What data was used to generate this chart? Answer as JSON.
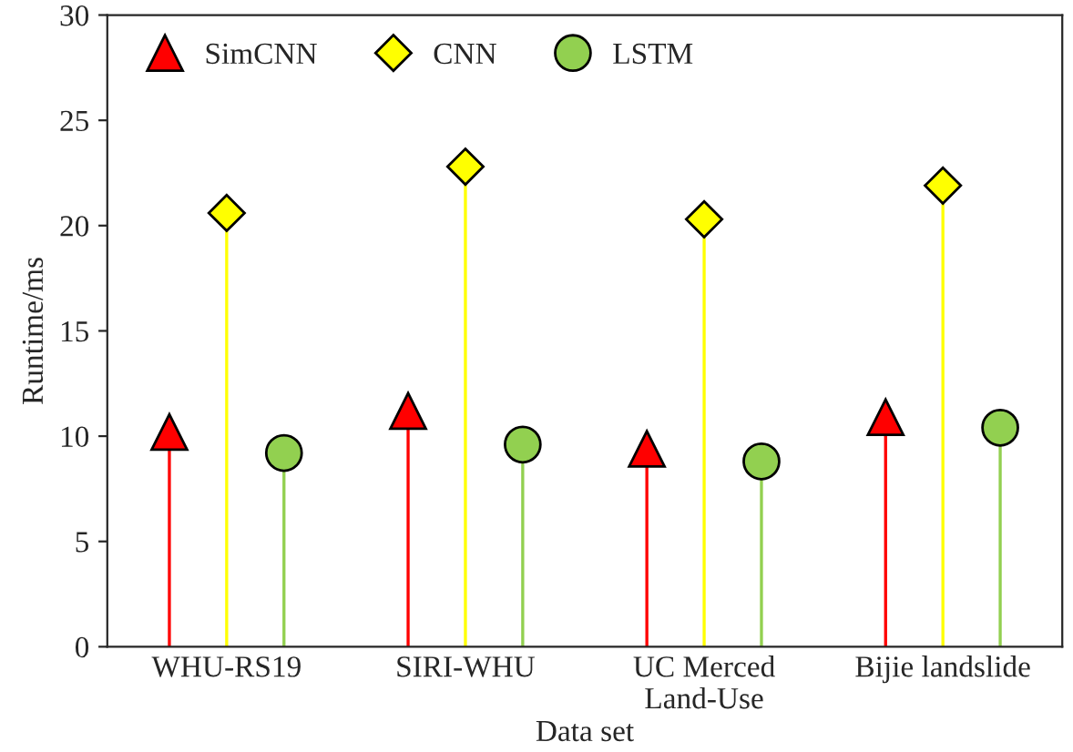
{
  "chart_data": {
    "type": "lollipop",
    "xlabel": "Data set",
    "ylabel": "Runtime/ms",
    "categories": [
      "WHU-RS19",
      "SIRI-WHU",
      "UC Merced\nLand-Use",
      "Bijie landslide"
    ],
    "series": [
      {
        "name": "SimCNN",
        "color": "#ff0000",
        "marker": "triangle",
        "values": [
          10.2,
          11.2,
          9.4,
          10.9
        ]
      },
      {
        "name": "CNN",
        "color": "#ffff00",
        "marker": "diamond",
        "values": [
          20.6,
          22.8,
          20.3,
          21.9
        ]
      },
      {
        "name": "LSTM",
        "color": "#92d050",
        "marker": "circle",
        "values": [
          9.2,
          9.6,
          8.8,
          10.4
        ]
      }
    ],
    "ylim": [
      0,
      30
    ],
    "yticks": [
      0,
      5,
      10,
      15,
      20,
      25,
      30
    ],
    "legend": "top left"
  }
}
